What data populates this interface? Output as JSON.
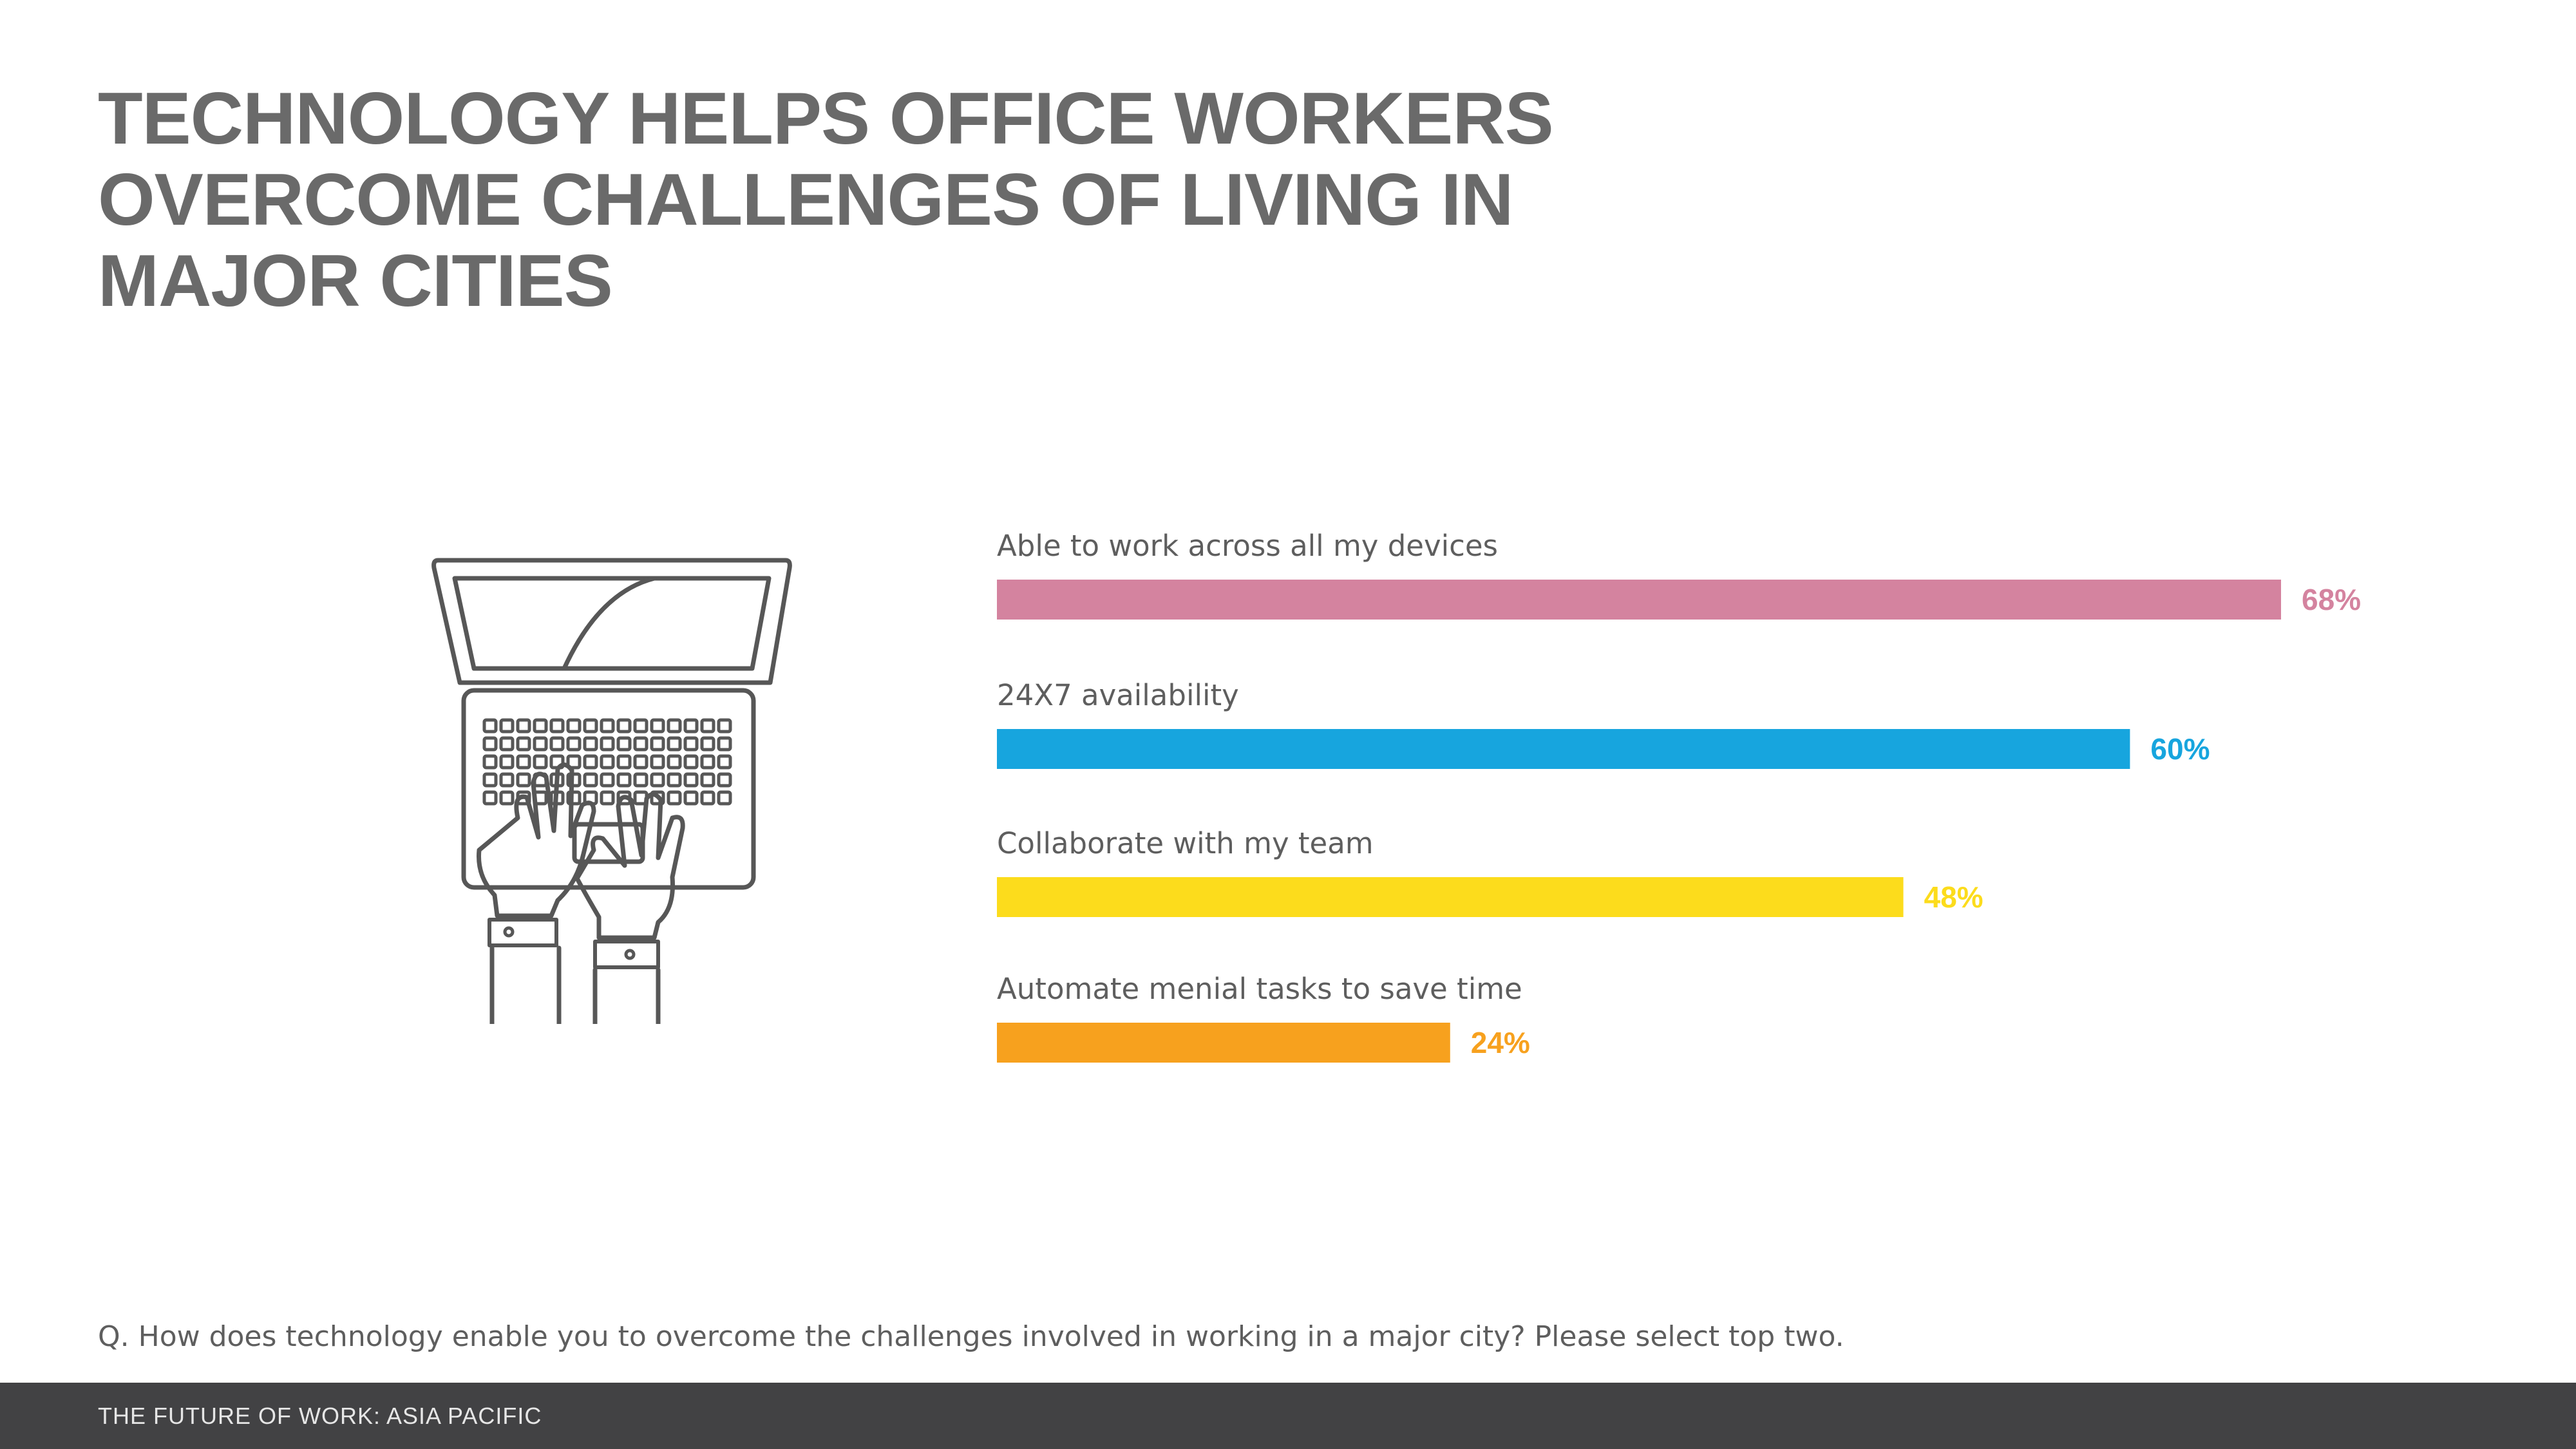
{
  "title": "TECHNOLOGY HELPS OFFICE WORKERS OVERCOME CHALLENGES OF LIVING IN MAJOR CITIES",
  "illustration": {
    "icon": "laptop-typing-hands-icon"
  },
  "chart_data": {
    "type": "bar",
    "orientation": "horizontal",
    "categories": [
      "Able to work across all my devices",
      "24X7 availability",
      "Collaborate with my team",
      "Automate menial tasks to save time"
    ],
    "values": [
      68,
      60,
      48,
      24
    ],
    "value_labels": [
      "68%",
      "60%",
      "48%",
      "24%"
    ],
    "colors": [
      "#d4839f",
      "#17a5de",
      "#fcdc1c",
      "#f7a11e"
    ],
    "xlim": [
      0,
      68
    ],
    "grid": false
  },
  "question": "Q. How does technology enable you to overcome the challenges involved in working in a major city? Please select top two.",
  "footer": {
    "text": "THE FUTURE OF WORK: ASIA PACIFIC"
  }
}
